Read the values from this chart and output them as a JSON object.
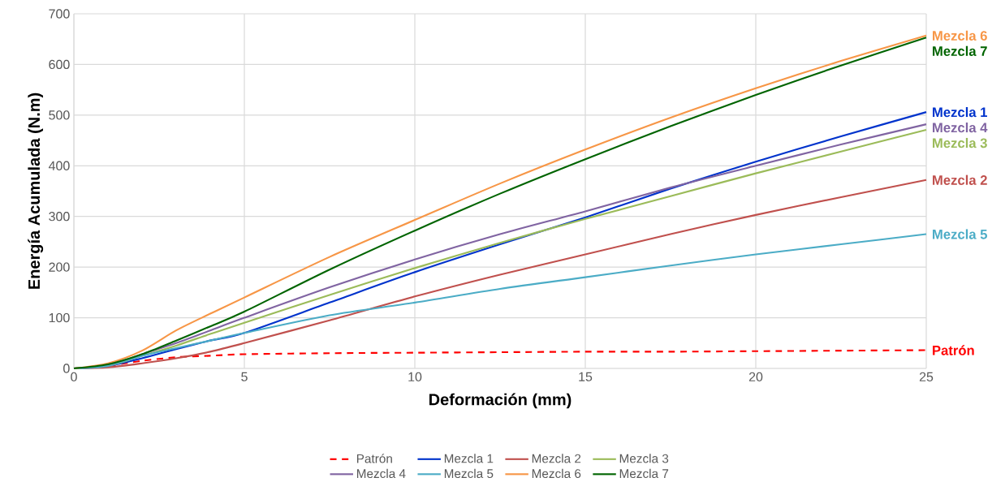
{
  "chart_data": {
    "type": "line",
    "xlabel": "Deformación (mm)",
    "ylabel": "Energía Acumulada (N.m)",
    "x": [
      0,
      1,
      2,
      3,
      4,
      5,
      7.5,
      10,
      12.5,
      15,
      17.5,
      20,
      22.5,
      25
    ],
    "series": [
      {
        "name": "Patrón",
        "color": "#ff0000",
        "line_style": "dashed",
        "values": [
          0,
          5,
          15,
          22,
          25,
          28,
          30,
          31,
          32,
          33,
          33,
          34,
          35,
          36
        ]
      },
      {
        "name": "Mezcla 1",
        "color": "#0033cc",
        "values": [
          0,
          5,
          20,
          38,
          55,
          70,
          130,
          190,
          245,
          298,
          355,
          408,
          458,
          506
        ]
      },
      {
        "name": "Mezcla 2",
        "color": "#c0504d",
        "values": [
          0,
          2,
          10,
          20,
          33,
          50,
          95,
          142,
          185,
          225,
          265,
          303,
          338,
          372
        ]
      },
      {
        "name": "Mezcla 3",
        "color": "#9bbb59",
        "values": [
          0,
          5,
          25,
          45,
          68,
          90,
          145,
          198,
          248,
          295,
          340,
          385,
          428,
          471
        ]
      },
      {
        "name": "Mezcla 4",
        "color": "#8064a2",
        "values": [
          0,
          5,
          28,
          50,
          75,
          100,
          160,
          215,
          265,
          310,
          357,
          400,
          442,
          482
        ]
      },
      {
        "name": "Mezcla 5",
        "color": "#4bacc6",
        "values": [
          0,
          5,
          25,
          40,
          55,
          70,
          105,
          130,
          157,
          180,
          203,
          225,
          245,
          265
        ]
      },
      {
        "name": "Mezcla 6",
        "color": "#f79646",
        "values": [
          0,
          10,
          35,
          75,
          108,
          140,
          220,
          293,
          365,
          432,
          495,
          553,
          607,
          657
        ]
      },
      {
        "name": "Mezcla 7",
        "color": "#006400",
        "values": [
          0,
          8,
          28,
          55,
          83,
          112,
          195,
          272,
          345,
          413,
          478,
          540,
          598,
          653
        ]
      }
    ],
    "xlim": [
      0,
      25
    ],
    "xticks": [
      0,
      5,
      10,
      15,
      20,
      25
    ],
    "ylim": [
      0,
      700
    ],
    "yticks": [
      0,
      100,
      200,
      300,
      400,
      500,
      600,
      700
    ],
    "grid": true,
    "legend": "bottom"
  }
}
